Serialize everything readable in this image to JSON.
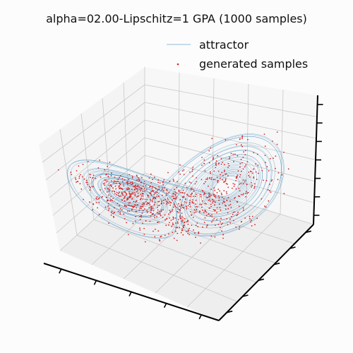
{
  "chart_data": {
    "type": "scatter",
    "projection": "3d",
    "title": "alpha=02.00-Lipschitz=1 GPA (1000 samples)",
    "xlabel": "",
    "ylabel": "",
    "zlabel": "",
    "grid": true,
    "tick_labels_visible": false,
    "legend": {
      "placement": "top-right"
    },
    "series": [
      {
        "name": "attractor",
        "kind": "line",
        "color": "#1f77b4",
        "system": "lorenz",
        "params": {
          "sigma": 10,
          "rho": 28,
          "beta": 2.6667
        }
      },
      {
        "name": "generated samples",
        "kind": "points",
        "color": "#d62728",
        "count": 1000
      }
    ]
  }
}
